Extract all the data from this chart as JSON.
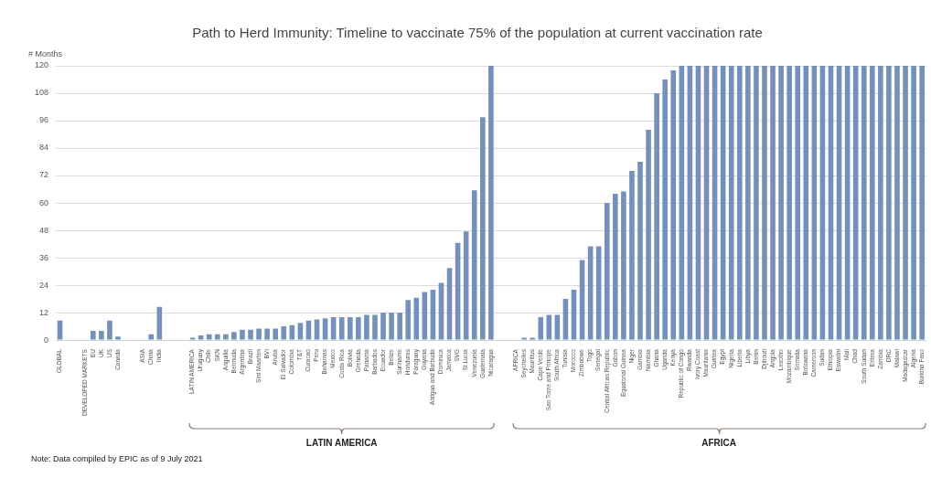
{
  "chart_data": {
    "type": "bar",
    "title": "Path to Herd Immunity: Timeline to vaccinate 75% of the population at current vaccination rate",
    "ylabel": "# Months",
    "categories": [
      "GLOBAL",
      null,
      null,
      "DEVELOPED MARKETS",
      "EU",
      "UK",
      "US",
      "Canada",
      null,
      null,
      "ASIA",
      "China",
      "India",
      null,
      null,
      null,
      "LATIN AMERICA",
      "Uruguay",
      "Chile",
      "SKN",
      "Anguilla",
      "Bermuda",
      "Argentina",
      "Brazil",
      "Sint Maarten",
      "BVI",
      "Aruba",
      "El Salvador",
      "Colombia",
      "T&T",
      "Curacao",
      "Peru",
      "Bahamas",
      "Mexico",
      "Costa Rica",
      "Bolivia",
      "Grenada",
      "Panama",
      "Barbados",
      "Ecuador",
      "Belize",
      "Suriname",
      "Honduras",
      "Paraguay",
      "Guyana",
      "Antigua and Barbuda",
      "Dominica",
      "Jamaica",
      "SVG",
      "St Lucia",
      "Venezuela",
      "Guatemala",
      "Nicaragua",
      null,
      null,
      "AFRICA",
      "Seychelles",
      "Mauritius",
      "Cape Verde",
      "Sao Tome and Principe",
      "South Africa",
      "Tunisia",
      "Morocco",
      "Zimbabwe",
      "Togo",
      "Senegal",
      "Central African Republic",
      "Gabon",
      "Equatorial Guinea",
      "Niger",
      "Gambia",
      "Namibia",
      "Ghana",
      "Uganda",
      "Kenya",
      "Republic of Congo",
      "Rwanda",
      "Ivory Coast",
      "Mauritania",
      "Guinea",
      "Egypt",
      "Nigeria",
      "Liberia",
      "Libya",
      "Benin",
      "Djibouti",
      "Angola",
      "Lesotho",
      "Mozambique",
      "Somalia",
      "Botswana",
      "Cameroon",
      "Sudan",
      "Ethiopia",
      "Eswatini",
      "Mali",
      "Chad",
      "South Sudan",
      "Eritrea",
      "Zambia",
      "DRC",
      "Malawi",
      "Madagascar",
      "Algeria",
      "Burkina Faso"
    ],
    "values": [
      8.5,
      null,
      null,
      0,
      4,
      4,
      8.5,
      1.5,
      null,
      null,
      0,
      2.5,
      14.5,
      null,
      null,
      null,
      1,
      2,
      2.5,
      2.5,
      2.5,
      3.5,
      4.5,
      4.5,
      5,
      5,
      5,
      6,
      6.5,
      7.5,
      8.5,
      9,
      9.5,
      10,
      10,
      10,
      10,
      11,
      11,
      12,
      12,
      12,
      17.5,
      18.5,
      21,
      22,
      25,
      31.5,
      42.5,
      47.5,
      65.5,
      97.5,
      120,
      null,
      null,
      0,
      1,
      1,
      10,
      11,
      11,
      18,
      22,
      35,
      41,
      41,
      60,
      64,
      65,
      74,
      78,
      92,
      108,
      114,
      118,
      120,
      120,
      120,
      120,
      120,
      120,
      120,
      120,
      120,
      120,
      120,
      120,
      120,
      120,
      120,
      120,
      120,
      120,
      120,
      120,
      120,
      120,
      120,
      120,
      120,
      120,
      120,
      120,
      120,
      120
    ],
    "color": "#7590bb",
    "ylim": [
      0,
      120
    ],
    "yticks": [
      0,
      12,
      24,
      36,
      48,
      60,
      72,
      84,
      96,
      108,
      120
    ],
    "grid": "y",
    "legend": false,
    "annotations": [
      "LATIN AMERICA",
      "AFRICA",
      "Note: Data compiled by EPIC as of 9 July 2021"
    ]
  }
}
